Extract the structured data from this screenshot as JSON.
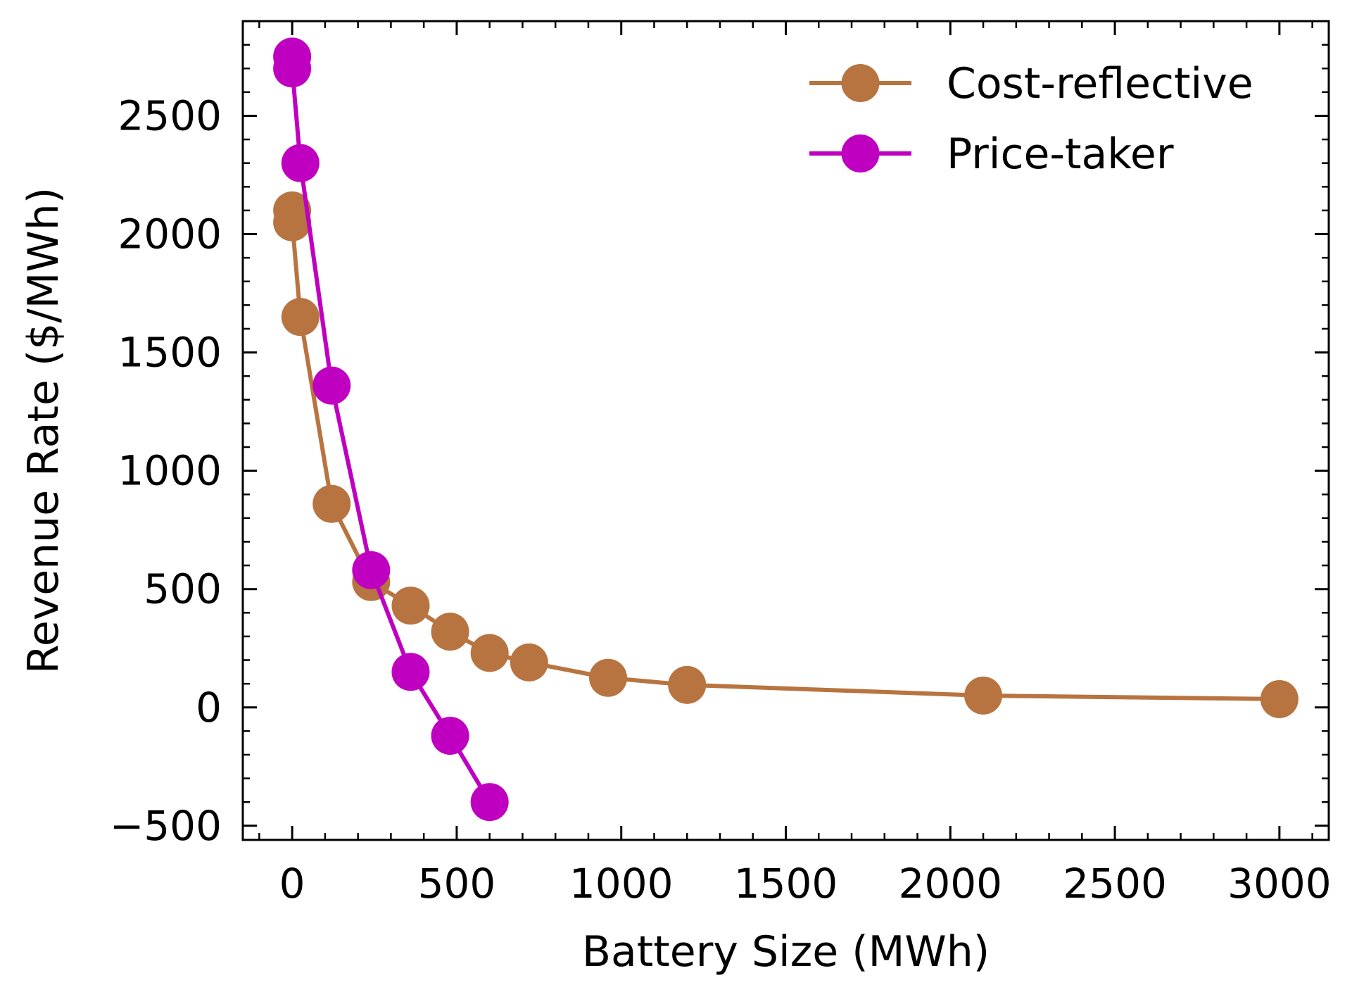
{
  "chart_data": {
    "type": "line",
    "title": "",
    "xlabel": "Battery Size (MWh)",
    "ylabel": "Revenue Rate ($/MWh)",
    "xlim": [
      -150,
      3150
    ],
    "ylim": [
      -560,
      2900
    ],
    "x_ticks": [
      0,
      500,
      1000,
      1500,
      2000,
      2500,
      3000
    ],
    "x_tick_labels": [
      "0",
      "500",
      "1000",
      "1500",
      "2000",
      "2500",
      "3000"
    ],
    "y_ticks": [
      -500,
      0,
      500,
      1000,
      1500,
      2000,
      2500
    ],
    "y_tick_labels": [
      "−500",
      "0",
      "500",
      "1000",
      "1500",
      "2000",
      "2500"
    ],
    "grid": false,
    "ticks_direction": "in",
    "legend_position": "top-right",
    "series": [
      {
        "name": "Cost-reflective",
        "color": "#b87440",
        "marker": "circle",
        "x": [
          0,
          0,
          25,
          120,
          240,
          360,
          480,
          600,
          720,
          960,
          1200,
          2100,
          3000
        ],
        "y": [
          2100,
          2050,
          1650,
          860,
          530,
          430,
          320,
          230,
          190,
          125,
          95,
          50,
          35
        ]
      },
      {
        "name": "Price-taker",
        "color": "#c000c0",
        "marker": "circle",
        "x": [
          0,
          0,
          25,
          120,
          240,
          360,
          480,
          600
        ],
        "y": [
          2750,
          2700,
          2300,
          1360,
          580,
          150,
          -120,
          -400
        ]
      }
    ]
  }
}
